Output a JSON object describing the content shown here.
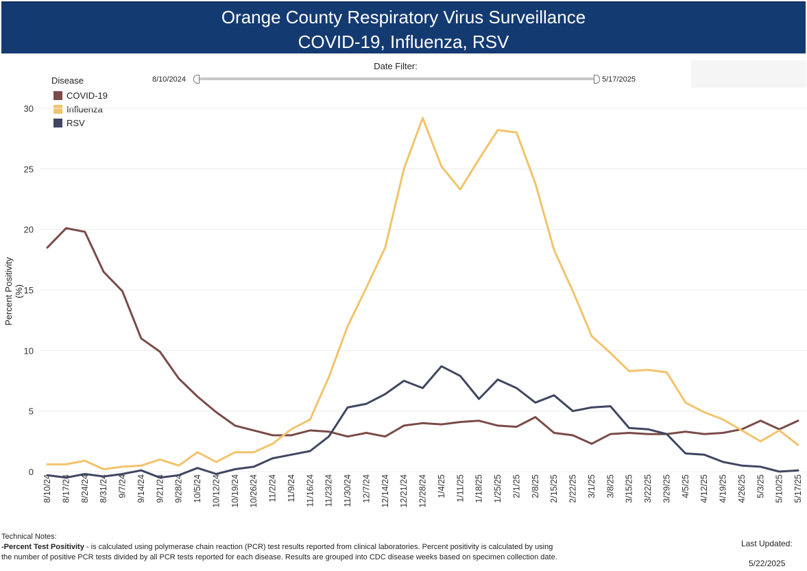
{
  "header": {
    "title_line1": "Orange County Respiratory Virus Surveillance",
    "title_line2": "COVID-19, Influenza, RSV",
    "background": "#143a72"
  },
  "filter": {
    "label": "Date Filter:",
    "start": "8/10/2024",
    "end": "5/17/2025"
  },
  "legend": {
    "title": "Disease",
    "items": [
      {
        "label": "COVID-19",
        "color": "#7a4b48"
      },
      {
        "label": "Influenza",
        "color": "#f2c36b"
      },
      {
        "label": "RSV",
        "color": "#3f4660"
      }
    ]
  },
  "chart_data": {
    "type": "line",
    "title": "",
    "xlabel": "",
    "ylabel": "Percent Positivity (%)",
    "ylim": [
      0,
      30
    ],
    "yticks": [
      0,
      5,
      10,
      15,
      20,
      25,
      30
    ],
    "grid": true,
    "legend_position": "top-left",
    "categories": [
      "8/10/24",
      "8/17/24",
      "8/24/24",
      "8/31/24",
      "9/7/24",
      "9/14/24",
      "9/21/24",
      "9/28/24",
      "10/5/24",
      "10/12/24",
      "10/19/24",
      "10/26/24",
      "11/2/24",
      "11/9/24",
      "11/16/24",
      "11/23/24",
      "11/30/24",
      "12/7/24",
      "12/14/24",
      "12/21/24",
      "12/28/24",
      "1/4/25",
      "1/11/25",
      "1/18/25",
      "1/25/25",
      "2/1/25",
      "2/8/25",
      "2/15/25",
      "2/22/25",
      "3/1/25",
      "3/8/25",
      "3/15/25",
      "3/22/25",
      "3/29/25",
      "4/5/25",
      "4/12/25",
      "4/19/25",
      "4/26/25",
      "5/3/25",
      "5/10/25",
      "5/17/25"
    ],
    "series": [
      {
        "name": "COVID-19",
        "color": "#7a4b48",
        "values": [
          18.5,
          20.1,
          19.8,
          16.5,
          14.9,
          11.0,
          9.9,
          7.7,
          6.2,
          4.9,
          3.8,
          3.4,
          3.0,
          3.0,
          3.4,
          3.3,
          2.9,
          3.2,
          2.9,
          3.8,
          4.0,
          3.9,
          4.1,
          4.2,
          3.8,
          3.7,
          4.5,
          3.2,
          3.0,
          2.3,
          3.1,
          3.2,
          3.1,
          3.1,
          3.3,
          3.1,
          3.2,
          3.5,
          4.2,
          3.5,
          4.2
        ]
      },
      {
        "name": "Influenza",
        "color": "#f2c36b",
        "values": [
          0.6,
          0.6,
          0.9,
          0.2,
          0.4,
          0.5,
          1.0,
          0.5,
          1.6,
          0.8,
          1.6,
          1.6,
          2.3,
          3.5,
          4.3,
          7.8,
          12.0,
          15.2,
          18.5,
          25.0,
          29.2,
          25.2,
          23.3,
          25.8,
          28.2,
          28.0,
          23.8,
          18.3,
          14.9,
          11.2,
          9.8,
          8.3,
          8.4,
          8.2,
          5.7,
          4.9,
          4.3,
          3.4,
          2.5,
          3.4,
          2.2
        ]
      },
      {
        "name": "RSV",
        "color": "#3f4660",
        "values": [
          -0.3,
          -0.5,
          -0.2,
          -0.4,
          -0.2,
          0.1,
          -0.5,
          -0.3,
          0.3,
          -0.2,
          0.2,
          0.4,
          1.1,
          1.4,
          1.7,
          2.9,
          5.3,
          5.6,
          6.4,
          7.5,
          6.9,
          8.7,
          7.9,
          6.0,
          7.6,
          6.9,
          5.7,
          6.3,
          5.0,
          5.3,
          5.4,
          3.6,
          3.5,
          3.1,
          1.5,
          1.4,
          0.8,
          0.5,
          0.4,
          0.0,
          0.1
        ]
      }
    ]
  },
  "notes": {
    "heading": "Technical Notes:",
    "term": "-Percent Test Positivity",
    "line1_rest": " - is calculated using polymerase chain reaction (PCR) test results reported from clinical laboratories.  Percent positivity is calculated by using",
    "line2": "the number of positive PCR tests divided by all PCR tests reported for each disease. Results are grouped into CDC disease weeks based on specimen collection date."
  },
  "updated": {
    "label": "Last Updated:",
    "value": "5/22/2025"
  }
}
